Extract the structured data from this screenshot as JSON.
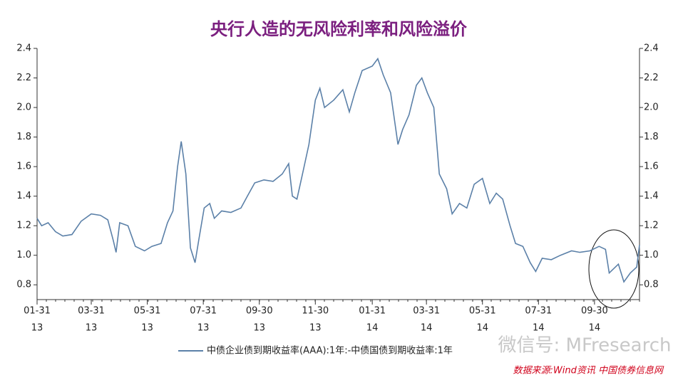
{
  "chart_data": {
    "type": "line",
    "title": "央行人造的无风险利率和风险溢价",
    "x": [
      "2013-01-31",
      "2013-02-05",
      "2013-02-12",
      "2013-02-20",
      "2013-02-28",
      "2013-03-10",
      "2013-03-20",
      "2013-03-31",
      "2013-04-10",
      "2013-04-18",
      "2013-04-24",
      "2013-04-27",
      "2013-05-01",
      "2013-05-10",
      "2013-05-18",
      "2013-05-28",
      "2013-06-05",
      "2013-06-15",
      "2013-06-22",
      "2013-06-28",
      "2013-07-03",
      "2013-07-07",
      "2013-07-12",
      "2013-07-17",
      "2013-07-22",
      "2013-07-26",
      "2013-08-01",
      "2013-08-07",
      "2013-08-12",
      "2013-08-20",
      "2013-08-30",
      "2013-09-10",
      "2013-09-17",
      "2013-09-25",
      "2013-10-05",
      "2013-10-15",
      "2013-10-25",
      "2013-11-01",
      "2013-11-05",
      "2013-11-10",
      "2013-11-16",
      "2013-11-23",
      "2013-11-30",
      "2013-12-05",
      "2013-12-10",
      "2013-12-20",
      "2013-12-30",
      "2014-01-06",
      "2014-01-12",
      "2014-01-20",
      "2014-01-31",
      "2014-02-06",
      "2014-02-12",
      "2014-02-20",
      "2014-02-28",
      "2014-03-05",
      "2014-03-12",
      "2014-03-20",
      "2014-03-26",
      "2014-04-01",
      "2014-04-08",
      "2014-04-14",
      "2014-04-22",
      "2014-04-28",
      "2014-05-06",
      "2014-05-14",
      "2014-05-22",
      "2014-05-31",
      "2014-06-08",
      "2014-06-15",
      "2014-06-22",
      "2014-06-30",
      "2014-07-06",
      "2014-07-14",
      "2014-07-22",
      "2014-07-28",
      "2014-08-04",
      "2014-08-14",
      "2014-08-24",
      "2014-09-05",
      "2014-09-14",
      "2014-09-25",
      "2014-10-05",
      "2014-10-12",
      "2014-10-16",
      "2014-10-26",
      "2014-11-01",
      "2014-11-08",
      "2014-11-15",
      "2014-11-18"
    ],
    "series": [
      {
        "name": "中债企业债到期收益率(AAA):1年:-中债国债到期收益率:1年",
        "color": "#5b80a8",
        "values": [
          1.25,
          1.2,
          1.22,
          1.16,
          1.13,
          1.14,
          1.23,
          1.28,
          1.27,
          1.24,
          1.1,
          1.02,
          1.22,
          1.2,
          1.06,
          1.03,
          1.06,
          1.08,
          1.22,
          1.3,
          1.6,
          1.77,
          1.55,
          1.05,
          0.95,
          1.1,
          1.32,
          1.35,
          1.25,
          1.3,
          1.29,
          1.32,
          1.4,
          1.49,
          1.51,
          1.5,
          1.55,
          1.62,
          1.4,
          1.38,
          1.55,
          1.75,
          2.05,
          2.13,
          2.0,
          2.05,
          2.12,
          1.97,
          2.1,
          2.25,
          2.28,
          2.33,
          2.22,
          2.1,
          1.75,
          1.85,
          1.95,
          2.15,
          2.2,
          2.1,
          2.0,
          1.55,
          1.45,
          1.28,
          1.35,
          1.32,
          1.48,
          1.52,
          1.35,
          1.42,
          1.38,
          1.2,
          1.08,
          1.06,
          0.95,
          0.89,
          0.98,
          0.97,
          1.0,
          1.03,
          1.02,
          1.03,
          1.06,
          1.04,
          0.88,
          0.94,
          0.82,
          0.88,
          0.92,
          1.07
        ]
      }
    ],
    "xlim": [
      "2013-01-31",
      "2014-11-18"
    ],
    "xticks": [
      {
        "value": "2013-01-31",
        "label": [
          "01-31",
          "13"
        ]
      },
      {
        "value": "2013-03-31",
        "label": [
          "03-31",
          "13"
        ]
      },
      {
        "value": "2013-05-31",
        "label": [
          "05-31",
          "13"
        ]
      },
      {
        "value": "2013-07-31",
        "label": [
          "07-31",
          "13"
        ]
      },
      {
        "value": "2013-09-30",
        "label": [
          "09-30",
          "13"
        ]
      },
      {
        "value": "2013-11-30",
        "label": [
          "11-30",
          "13"
        ]
      },
      {
        "value": "2014-01-31",
        "label": [
          "01-31",
          "14"
        ]
      },
      {
        "value": "2014-03-31",
        "label": [
          "03-31",
          "14"
        ]
      },
      {
        "value": "2014-05-31",
        "label": [
          "05-31",
          "14"
        ]
      },
      {
        "value": "2014-07-31",
        "label": [
          "07-31",
          "14"
        ]
      },
      {
        "value": "2014-09-30",
        "label": [
          "09-30",
          "14"
        ]
      }
    ],
    "ylim": [
      0.7,
      2.4
    ],
    "yticks": [
      {
        "value": 0.8,
        "label": "0.8"
      },
      {
        "value": 1.0,
        "label": "1.0"
      },
      {
        "value": 1.2,
        "label": "1.2"
      },
      {
        "value": 1.4,
        "label": "1.4"
      },
      {
        "value": 1.6,
        "label": "1.6"
      },
      {
        "value": 1.8,
        "label": "1.8"
      },
      {
        "value": 2.0,
        "label": "2.0"
      },
      {
        "value": 2.2,
        "label": "2.2"
      },
      {
        "value": 2.4,
        "label": "2.4"
      }
    ],
    "y2lim": [
      0.7,
      2.4
    ],
    "y2ticks": [
      {
        "value": 0.8,
        "label": "0.8"
      },
      {
        "value": 1.0,
        "label": "1.0"
      },
      {
        "value": 1.2,
        "label": "1.2"
      },
      {
        "value": 1.4,
        "label": "1.4"
      },
      {
        "value": 1.6,
        "label": "1.6"
      },
      {
        "value": 1.8,
        "label": "1.8"
      },
      {
        "value": 2.0,
        "label": "2.0"
      },
      {
        "value": 2.2,
        "label": "2.2"
      },
      {
        "value": 2.4,
        "label": "2.4"
      }
    ],
    "source": "数据来源:Wind资讯 中国债券信息网",
    "watermark": "微信号: MFresearch"
  }
}
